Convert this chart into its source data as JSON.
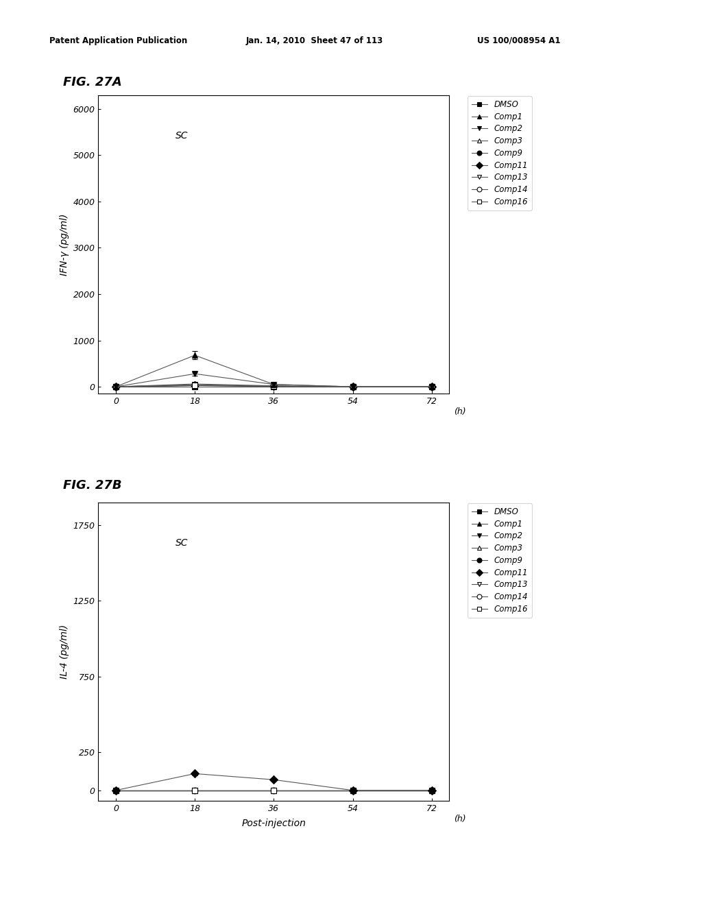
{
  "header_left": "Patent Application Publication",
  "header_center": "Jan. 14, 2010  Sheet 47 of 113",
  "header_right": "US 100/008954 A1",
  "x_values": [
    0,
    18,
    36,
    54,
    72
  ],
  "x_label": "Post-injection",
  "x_unit": "(h)",
  "fig_a_title": "FIG. 27A",
  "fig_b_title": "FIG. 27B",
  "sc_label": "SC",
  "fig_a_ylabel": "IFN-γ (pg/ml)",
  "fig_b_ylabel": "IL-4 (pg/ml)",
  "fig_a_yticks": [
    0,
    1000,
    2000,
    3000,
    4000,
    5000,
    6000
  ],
  "fig_a_ylim": [
    -150,
    6300
  ],
  "fig_b_yticks": [
    0,
    250,
    750,
    1250,
    1750
  ],
  "fig_b_ylim": [
    -70,
    1900
  ],
  "legend_entries": [
    "DMSO",
    "Comp1",
    "Comp2",
    "Comp3",
    "Comp9",
    "Comp11",
    "Comp13",
    "Comp14",
    "Comp16"
  ],
  "fig_a_data": {
    "DMSO": [
      0,
      0,
      0,
      0,
      0
    ],
    "Comp1": [
      0,
      680,
      50,
      0,
      0
    ],
    "Comp2": [
      0,
      280,
      50,
      0,
      0
    ],
    "Comp3": [
      0,
      60,
      20,
      0,
      0
    ],
    "Comp9": [
      0,
      40,
      10,
      0,
      0
    ],
    "Comp11": [
      0,
      30,
      10,
      0,
      0
    ],
    "Comp13": [
      0,
      40,
      10,
      0,
      0
    ],
    "Comp14": [
      0,
      25,
      10,
      0,
      0
    ],
    "Comp16": [
      0,
      25,
      10,
      0,
      0
    ]
  },
  "fig_a_errors": {
    "DMSO": [
      0,
      0,
      0,
      0,
      0
    ],
    "Comp1": [
      0,
      90,
      10,
      0,
      0
    ],
    "Comp2": [
      0,
      35,
      8,
      0,
      0
    ],
    "Comp3": [
      0,
      0,
      0,
      0,
      0
    ],
    "Comp9": [
      0,
      0,
      0,
      0,
      0
    ],
    "Comp11": [
      0,
      0,
      0,
      0,
      0
    ],
    "Comp13": [
      0,
      0,
      0,
      0,
      0
    ],
    "Comp14": [
      0,
      0,
      0,
      0,
      0
    ],
    "Comp16": [
      0,
      0,
      0,
      0,
      0
    ]
  },
  "fig_b_data": {
    "DMSO": [
      0,
      0,
      0,
      0,
      0
    ],
    "Comp1": [
      0,
      0,
      0,
      0,
      0
    ],
    "Comp2": [
      0,
      0,
      0,
      0,
      0
    ],
    "Comp3": [
      0,
      0,
      0,
      0,
      0
    ],
    "Comp9": [
      0,
      0,
      0,
      0,
      0
    ],
    "Comp11": [
      0,
      110,
      70,
      0,
      0
    ],
    "Comp13": [
      0,
      0,
      0,
      0,
      0
    ],
    "Comp14": [
      0,
      0,
      0,
      0,
      0
    ],
    "Comp16": [
      0,
      0,
      0,
      0,
      0
    ]
  },
  "fig_b_errors": {
    "DMSO": [
      0,
      0,
      0,
      0,
      0
    ],
    "Comp1": [
      0,
      0,
      0,
      0,
      0
    ],
    "Comp2": [
      0,
      0,
      0,
      0,
      0
    ],
    "Comp3": [
      0,
      0,
      0,
      0,
      0
    ],
    "Comp9": [
      0,
      0,
      0,
      0,
      0
    ],
    "Comp11": [
      0,
      12,
      8,
      0,
      0
    ],
    "Comp13": [
      0,
      0,
      0,
      0,
      0
    ],
    "Comp14": [
      0,
      0,
      0,
      0,
      0
    ],
    "Comp16": [
      0,
      0,
      0,
      0,
      0
    ]
  },
  "series_styles": {
    "DMSO": {
      "color": "#000000",
      "marker": "s",
      "fillstyle": "full",
      "markersize": 6
    },
    "Comp1": {
      "color": "#000000",
      "marker": "^",
      "fillstyle": "full",
      "markersize": 6
    },
    "Comp2": {
      "color": "#000000",
      "marker": "v",
      "fillstyle": "full",
      "markersize": 6
    },
    "Comp3": {
      "color": "#000000",
      "marker": "^",
      "fillstyle": "none",
      "markersize": 6
    },
    "Comp9": {
      "color": "#000000",
      "marker": "o",
      "fillstyle": "full",
      "markersize": 6
    },
    "Comp11": {
      "color": "#000000",
      "marker": "D",
      "fillstyle": "full",
      "markersize": 6
    },
    "Comp13": {
      "color": "#000000",
      "marker": "v",
      "fillstyle": "none",
      "markersize": 6
    },
    "Comp14": {
      "color": "#000000",
      "marker": "o",
      "fillstyle": "none",
      "markersize": 6
    },
    "Comp16": {
      "color": "#000000",
      "marker": "s",
      "fillstyle": "none",
      "markersize": 6
    }
  },
  "line_color": "#555555",
  "background_color": "#ffffff",
  "font_color": "#000000"
}
